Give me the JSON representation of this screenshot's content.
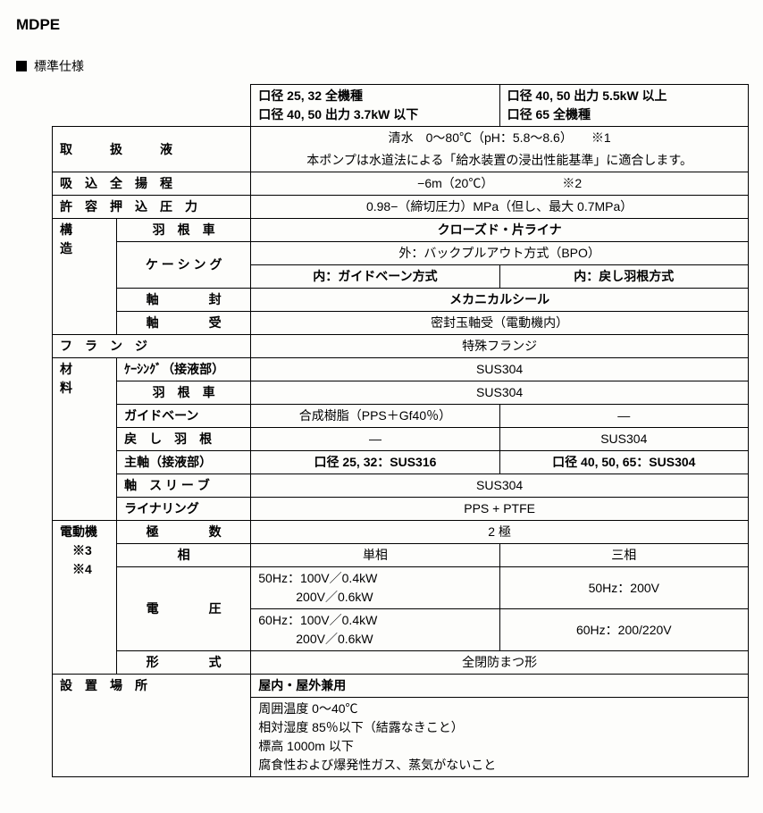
{
  "title": "MDPE",
  "section_label": "標準仕様",
  "header": {
    "left_lines": "口径 25, 32 全機種\n口径 40, 50 出力 3.7kW 以下",
    "right_lines": "口径 40, 50 出力 5.5kW 以上\n口径 65 全機種"
  },
  "row_liquid": {
    "label": "取　　　扱　　　液",
    "line1": "清水　0～80℃（pH：5.8～8.6）　　※1",
    "line2": "本ポンプは水道法による「給水装置の浸出性能基準」に適合します。"
  },
  "row_suction": {
    "label": "吸　込　全　揚　程",
    "value": "−6m（20℃）　　　　　　※2"
  },
  "row_pressure": {
    "label": "許　容　押　込　圧　力",
    "value": "0.98−（締切圧力）MPa（但し、最大 0.7MPa）"
  },
  "structure": {
    "label": "構　　造",
    "impeller_label": "羽　根　車",
    "impeller_value": "クローズド・片ライナ",
    "casing_label": "ケ ー シ ン グ",
    "casing_outer": "外：バックプルアウト方式（BPO）",
    "casing_inner_left": "内：ガイドベーン方式",
    "casing_inner_right": "内：戻し羽根方式",
    "seal_label": "軸　　　　封",
    "seal_value": "メカニカルシール",
    "bearing_label": "軸　　　　受",
    "bearing_value": "密封玉軸受（電動機内）"
  },
  "flange": {
    "label": "フ　ラ　ン　ジ",
    "value": "特殊フランジ"
  },
  "material": {
    "label": "材　　料",
    "casing_wet_label": "ｹｰｼﾝｸﾞ（接液部）",
    "casing_wet": "SUS304",
    "impeller_label": "羽　根　車",
    "impeller": "SUS304",
    "guidevane_label": "ガイドベーン",
    "guidevane_left": "合成樹脂（PPS＋Gf40％）",
    "guidevane_right": "—",
    "return_label": "戻　し　羽　根",
    "return_left": "—",
    "return_right": "SUS304",
    "shaft_label": "主軸（接液部）",
    "shaft_left": "口径 25, 32：SUS316",
    "shaft_right": "口径 40, 50, 65：SUS304",
    "sleeve_label": "軸　ス リ ー ブ",
    "sleeve": "SUS304",
    "lining_label": "ライナリング",
    "lining": "PPS + PTFE"
  },
  "motor": {
    "label": "電動機\n　※3\n　※4",
    "poles_label": "極　　　　数",
    "poles": "2 極",
    "phase_label": "相",
    "phase_left": "単相",
    "phase_right": "三相",
    "voltage_label": "電　　　　圧",
    "v50_left": "50Hz：100V／0.4kW\n　　　200V／0.6kW",
    "v50_right": "50Hz：200V",
    "v60_left": "60Hz：100V／0.4kW\n　　　200V／0.6kW",
    "v60_right": "60Hz：200/220V",
    "type_label": "形　　　　式",
    "type": "全閉防まつ形"
  },
  "install": {
    "label": "設　置　場　所",
    "line1": "屋内・屋外兼用",
    "lines": "周囲温度 0～40℃\n相対湿度 85％以下（結露なきこと）\n標高 1000m 以下\n腐食性および爆発性ガス、蒸気がないこと"
  }
}
